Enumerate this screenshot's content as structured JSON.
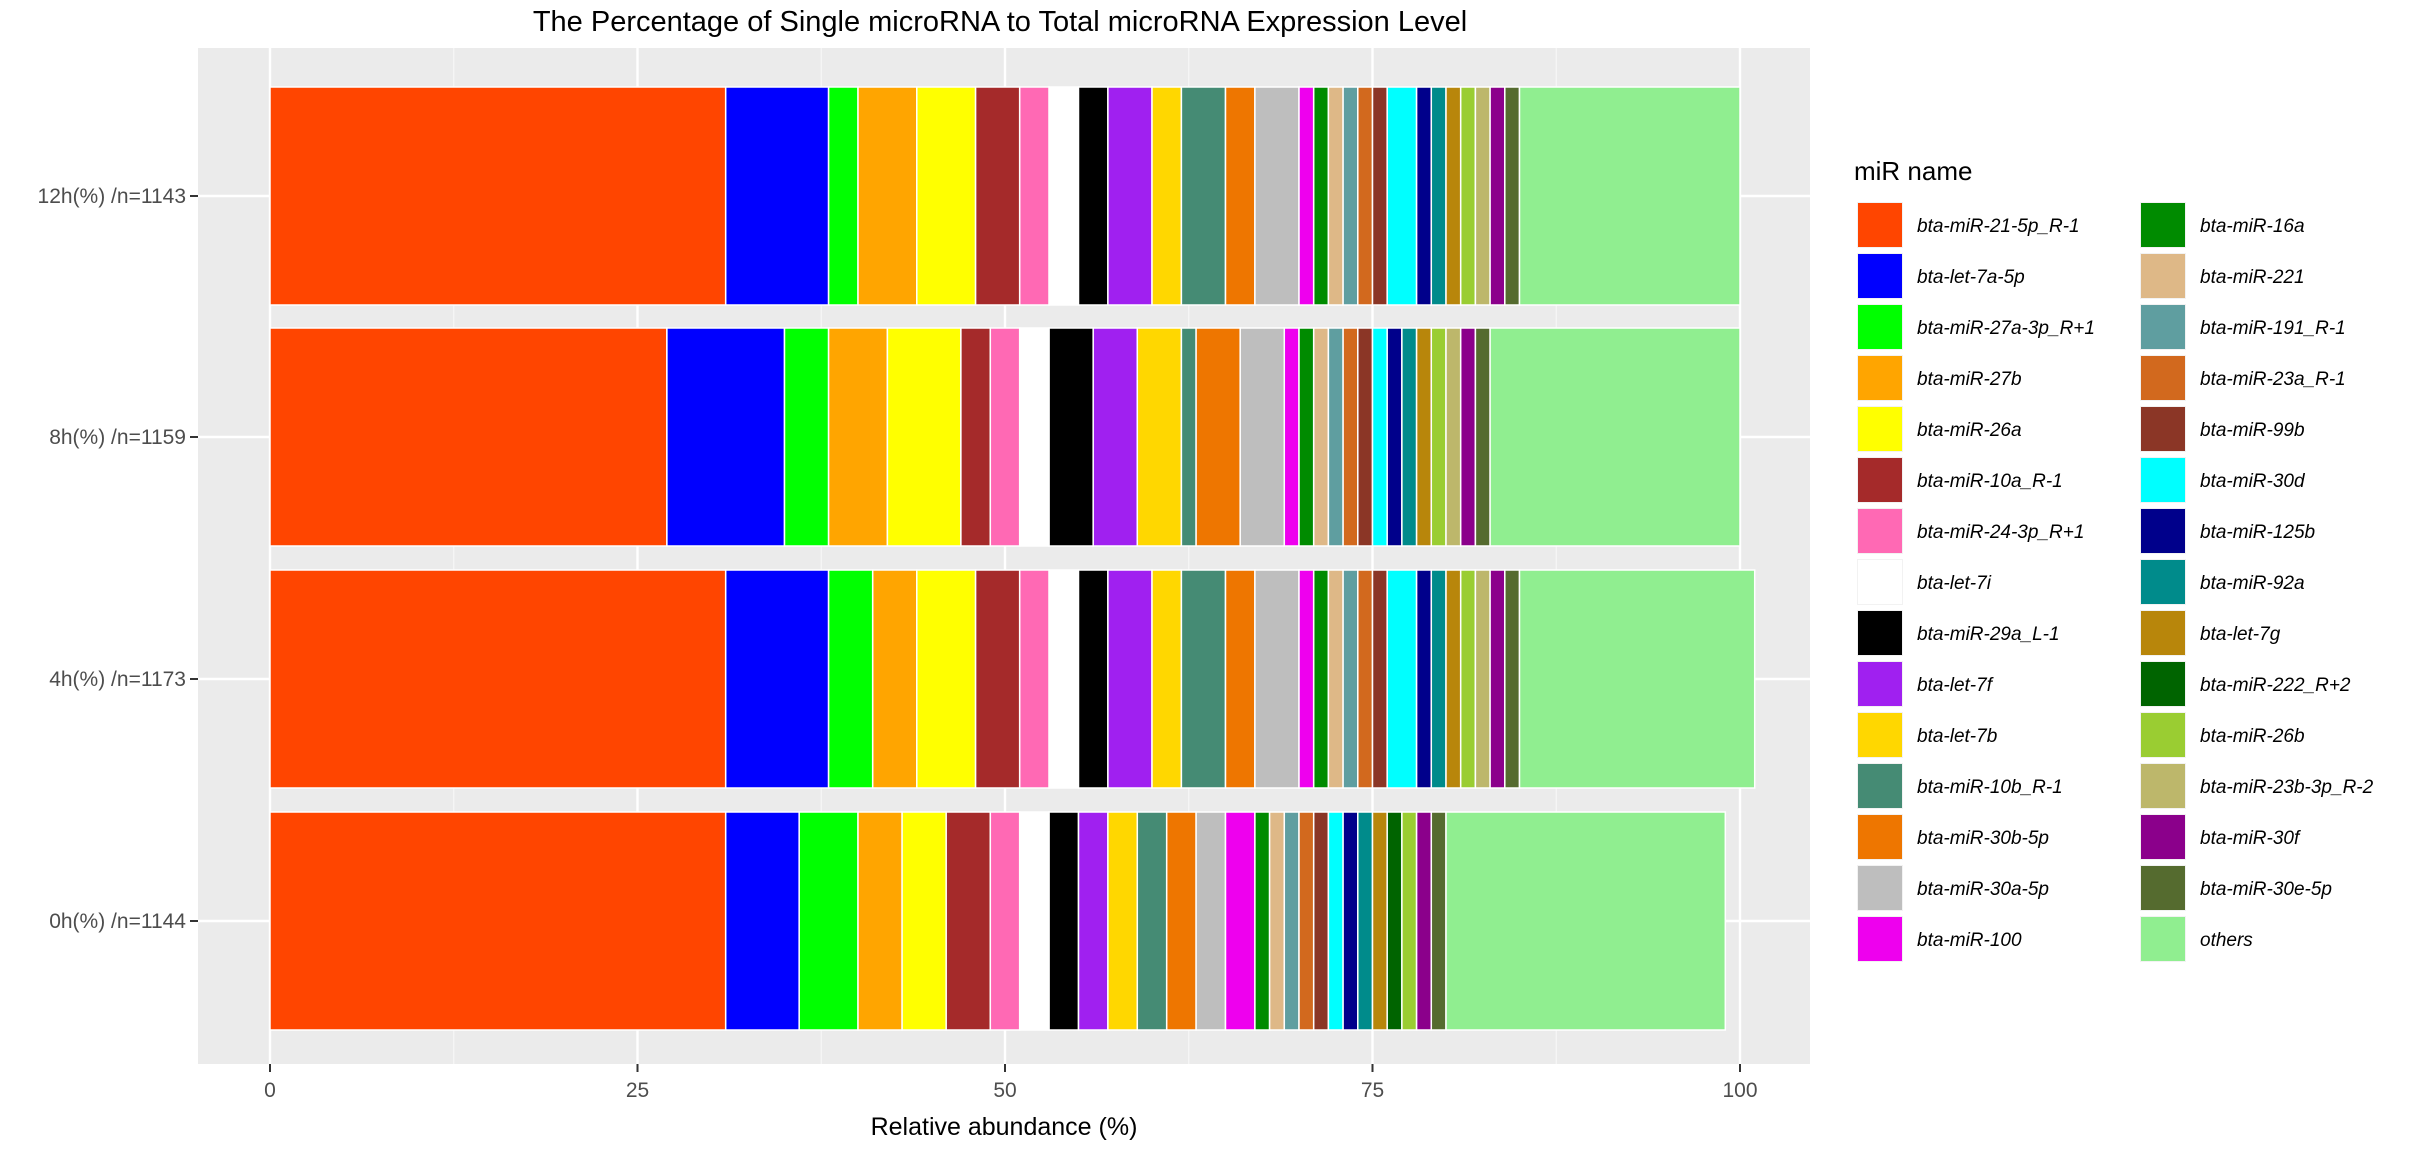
{
  "chart_data": {
    "type": "bar",
    "orientation": "horizontal",
    "stacked": true,
    "title": "The Percentage of Single microRNA to Total microRNA Expression Level",
    "xlabel": "Relative abundance (%)",
    "ylabel": "",
    "xlim": [
      0,
      100
    ],
    "x_ticks": [
      "0",
      "25",
      "50",
      "75",
      "100"
    ],
    "x_tick_values": [
      0,
      25,
      50,
      75,
      100
    ],
    "grid": true,
    "legend_title": "miR name",
    "legend_position": "right",
    "categories": [
      "12h(%) /n=1143",
      "8h(%) /n=1159",
      "4h(%) /n=1173",
      "0h(%) /n=1144"
    ],
    "series": [
      {
        "name": "bta-miR-21-5p_R-1",
        "color": "#FF4500",
        "values": [
          31,
          27,
          31,
          31
        ]
      },
      {
        "name": "bta-let-7a-5p",
        "color": "#0000FF",
        "values": [
          7,
          8,
          7,
          5
        ]
      },
      {
        "name": "bta-miR-27a-3p_R+1",
        "color": "#00FF00",
        "values": [
          2,
          3,
          3,
          4
        ]
      },
      {
        "name": "bta-miR-27b",
        "color": "#FFA500",
        "values": [
          4,
          4,
          3,
          3
        ]
      },
      {
        "name": "bta-miR-26a",
        "color": "#FFFF00",
        "values": [
          4,
          5,
          4,
          3
        ]
      },
      {
        "name": "bta-miR-10a_R-1",
        "color": "#A52A2A",
        "values": [
          3,
          2,
          3,
          3
        ]
      },
      {
        "name": "bta-miR-24-3p_R+1",
        "color": "#FF69B4",
        "values": [
          2,
          2,
          2,
          2
        ]
      },
      {
        "name": "bta-let-7i",
        "color": "#FFFFFF",
        "values": [
          2,
          2,
          2,
          2
        ]
      },
      {
        "name": "bta-miR-29a_L-1",
        "color": "#000000",
        "values": [
          2,
          3,
          2,
          2
        ]
      },
      {
        "name": "bta-let-7f",
        "color": "#A020F0",
        "values": [
          3,
          3,
          3,
          2
        ]
      },
      {
        "name": "bta-let-7b",
        "color": "#FFD700",
        "values": [
          2,
          3,
          2,
          2
        ]
      },
      {
        "name": "bta-miR-10b_R-1",
        "color": "#458B74",
        "values": [
          3,
          1,
          3,
          2
        ]
      },
      {
        "name": "bta-miR-30b-5p",
        "color": "#EE7600",
        "values": [
          2,
          3,
          2,
          2
        ]
      },
      {
        "name": "bta-miR-30a-5p",
        "color": "#BEBEBE",
        "values": [
          3,
          3,
          3,
          2
        ]
      },
      {
        "name": "bta-miR-100",
        "color": "#EE00EE",
        "values": [
          1,
          1,
          1,
          2
        ]
      },
      {
        "name": "bta-miR-16a",
        "color": "#008B00",
        "values": [
          1,
          1,
          1,
          1
        ]
      },
      {
        "name": "bta-miR-221",
        "color": "#DEB887",
        "values": [
          1,
          1,
          1,
          1
        ]
      },
      {
        "name": "bta-miR-191_R-1",
        "color": "#5F9EA0",
        "values": [
          1,
          1,
          1,
          1
        ]
      },
      {
        "name": "bta-miR-23a_R-1",
        "color": "#D2691E",
        "values": [
          1,
          1,
          1,
          1
        ]
      },
      {
        "name": "bta-miR-99b",
        "color": "#8B3626",
        "values": [
          1,
          1,
          1,
          1
        ]
      },
      {
        "name": "bta-miR-30d",
        "color": "#00FFFF",
        "values": [
          2,
          1,
          2,
          1
        ]
      },
      {
        "name": "bta-miR-125b",
        "color": "#00008B",
        "values": [
          1,
          1,
          1,
          1
        ]
      },
      {
        "name": "bta-miR-92a",
        "color": "#008B8B",
        "values": [
          1,
          1,
          1,
          1
        ]
      },
      {
        "name": "bta-let-7g",
        "color": "#B8860B",
        "values": [
          1,
          1,
          1,
          1
        ]
      },
      {
        "name": "bta-miR-222_R+2",
        "color": "#006400",
        "values": [
          0,
          0,
          0,
          1
        ]
      },
      {
        "name": "bta-miR-26b",
        "color": "#9ACD32",
        "values": [
          1,
          1,
          1,
          1
        ]
      },
      {
        "name": "bta-miR-23b-3p_R-2",
        "color": "#BDB76B",
        "values": [
          1,
          1,
          1,
          0
        ]
      },
      {
        "name": "bta-miR-30f",
        "color": "#8B008B",
        "values": [
          1,
          1,
          1,
          1
        ]
      },
      {
        "name": "bta-miR-30e-5p",
        "color": "#556B2F",
        "values": [
          1,
          1,
          1,
          1
        ]
      },
      {
        "name": "others",
        "color": "#90EE90",
        "values": [
          15,
          17,
          16,
          19
        ]
      }
    ]
  }
}
